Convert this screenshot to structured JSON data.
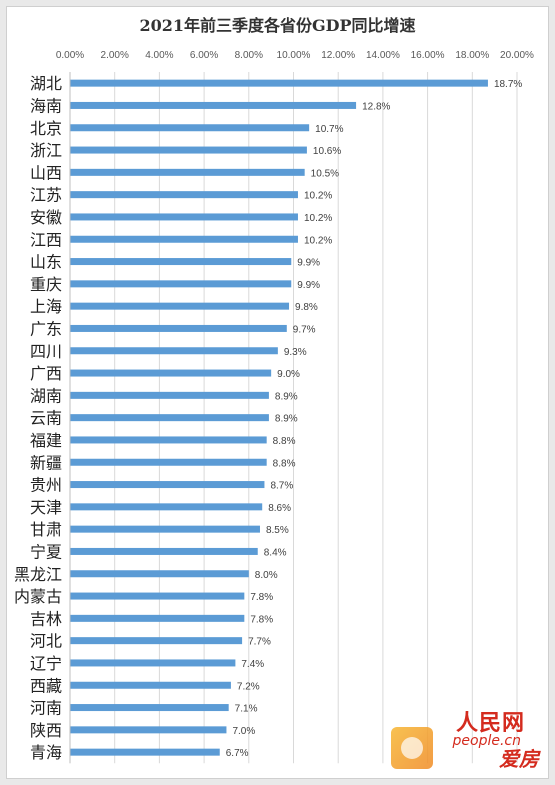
{
  "title": "2021年前三季度各省份GDP同比增速",
  "chart_data": {
    "type": "bar",
    "orientation": "horizontal",
    "title": "2021年前三季度各省份GDP同比增速",
    "xlim": [
      0,
      20
    ],
    "x_ticks": [
      "0.00%",
      "2.00%",
      "4.00%",
      "6.00%",
      "8.00%",
      "10.00%",
      "12.00%",
      "14.00%",
      "16.00%",
      "18.00%",
      "20.00%"
    ],
    "x_tick_values": [
      0,
      2,
      4,
      6,
      8,
      10,
      12,
      14,
      16,
      18,
      20
    ],
    "categories": [
      "湖北",
      "海南",
      "北京",
      "浙江",
      "山西",
      "江苏",
      "安徽",
      "江西",
      "山东",
      "重庆",
      "上海",
      "广东",
      "四川",
      "广西",
      "湖南",
      "云南",
      "福建",
      "新疆",
      "贵州",
      "天津",
      "甘肃",
      "宁夏",
      "黑龙江",
      "内蒙古",
      "吉林",
      "河北",
      "辽宁",
      "西藏",
      "河南",
      "陕西",
      "青海"
    ],
    "values": [
      18.7,
      12.8,
      10.7,
      10.6,
      10.5,
      10.2,
      10.2,
      10.2,
      9.9,
      9.9,
      9.8,
      9.7,
      9.3,
      9.0,
      8.9,
      8.9,
      8.8,
      8.8,
      8.7,
      8.6,
      8.5,
      8.4,
      8.0,
      7.8,
      7.8,
      7.7,
      7.4,
      7.2,
      7.1,
      7.0,
      6.7
    ],
    "data_labels": [
      "18.7%",
      "12.8%",
      "10.7%",
      "10.6%",
      "10.5%",
      "10.2%",
      "10.2%",
      "10.2%",
      "9.9%",
      "9.9%",
      "9.8%",
      "9.7%",
      "9.3%",
      "9.0%",
      "8.9%",
      "8.9%",
      "8.8%",
      "8.8%",
      "8.7%",
      "8.6%",
      "8.5%",
      "8.4%",
      "8.0%",
      "7.8%",
      "7.8%",
      "7.7%",
      "7.4%",
      "7.2%",
      "7.1%",
      "7.0%",
      "6.7%"
    ],
    "grid": true,
    "bar_color": "#5b9bd5",
    "grid_color": "#d9d9d9"
  },
  "watermark": {
    "logo": "人民网",
    "url": "people.cn",
    "brand": "爱房"
  }
}
